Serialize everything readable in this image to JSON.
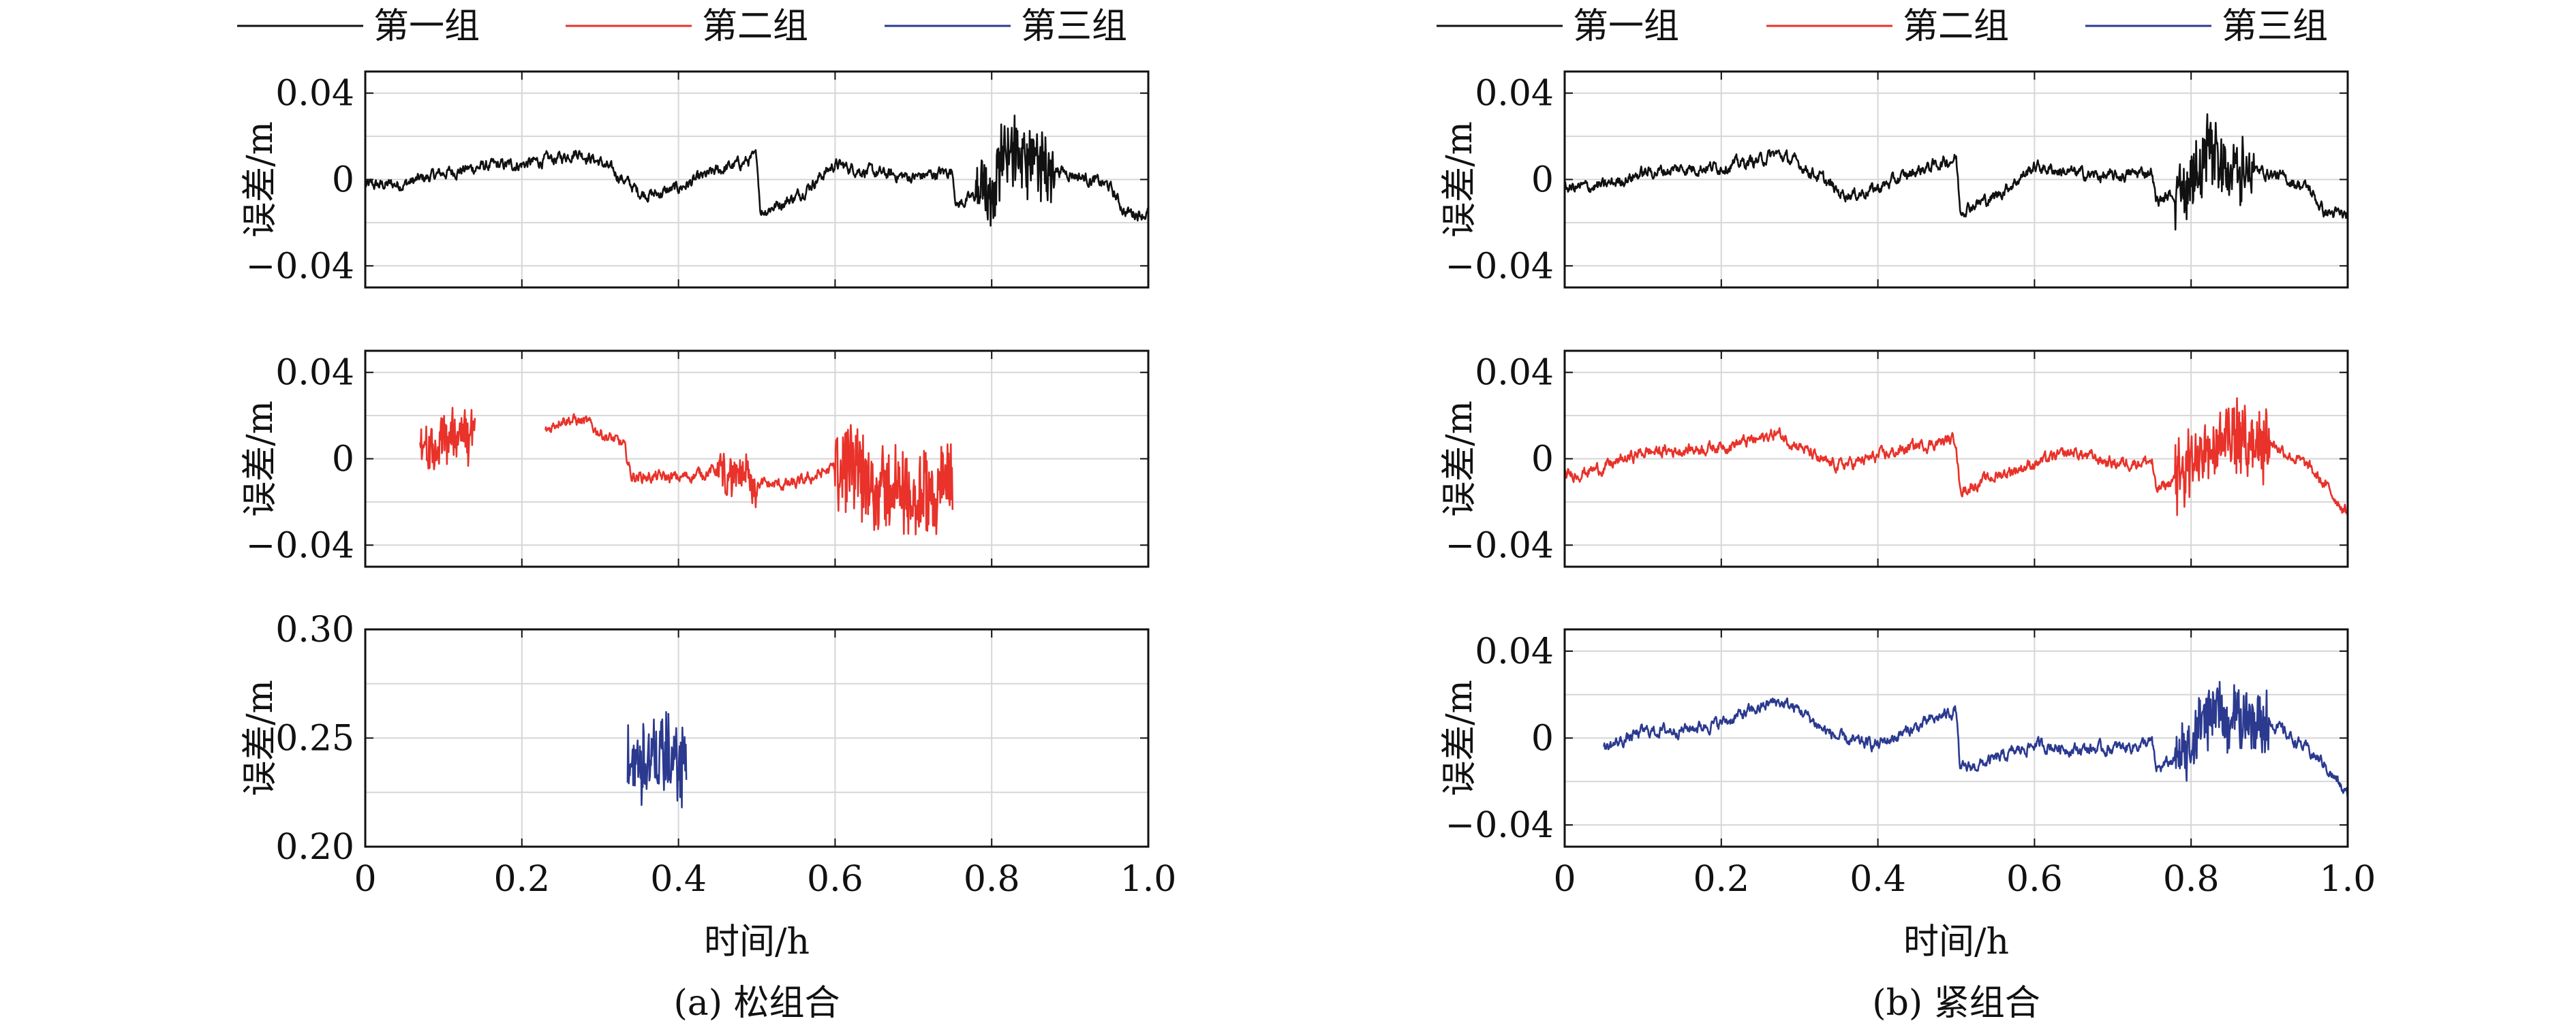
{
  "legend": [
    {
      "label": "第一组",
      "color": "#111111"
    },
    {
      "label": "第二组",
      "color": "#e8322a"
    },
    {
      "label": "第三组",
      "color": "#2b3a8f"
    }
  ],
  "chart_data": [
    {
      "panel": "(a) 松组合",
      "caption": "(a) 松组合",
      "xlabel": "时间/h",
      "xlim": [
        0,
        1.0
      ],
      "xticks": [
        "0",
        "0.2",
        "0.4",
        "0.6",
        "0.8",
        "1.0"
      ],
      "subplots": [
        {
          "type": "line",
          "ylabel": "误差/m",
          "ylim": [
            -0.05,
            0.05
          ],
          "yticks": [
            {
              "v": 0.04,
              "label": "0.04"
            },
            {
              "v": 0,
              "label": "0"
            },
            {
              "v": -0.04,
              "label": "−0.04"
            }
          ],
          "series": [
            {
              "name": "第一组",
              "color": "#111111",
              "x": [
                0,
                0.05,
                0.1,
                0.15,
                0.2,
                0.25,
                0.27,
                0.3,
                0.33,
                0.35,
                0.37,
                0.4,
                0.45,
                0.5,
                0.505,
                0.55,
                0.6,
                0.65,
                0.7,
                0.75,
                0.755,
                0.8,
                0.82,
                0.85,
                0.9,
                0.95,
                0.97,
                1.0
              ],
              "y": [
                -0.003,
                -0.002,
                0.003,
                0.006,
                0.007,
                0.01,
                0.013,
                0.008,
                0.0,
                -0.006,
                -0.007,
                -0.004,
                0.004,
                0.01,
                -0.015,
                -0.008,
                0.007,
                0.003,
                0.001,
                0.004,
                -0.012,
                -0.004,
                0.017,
                0.007,
                0.003,
                -0.003,
                -0.015,
                -0.016
              ],
              "noise": 0.004,
              "spikes": [
                [
                  0.78,
                  0.88,
                  0.018
                ]
              ]
            }
          ]
        },
        {
          "type": "line",
          "ylabel": "误差/m",
          "ylim": [
            -0.05,
            0.05
          ],
          "yticks": [
            {
              "v": 0.04,
              "label": "0.04"
            },
            {
              "v": 0,
              "label": "0"
            },
            {
              "v": -0.04,
              "label": "−0.04"
            }
          ],
          "series": [
            {
              "name": "第二组",
              "color": "#e8322a",
              "x": [
                0.07,
                0.1,
                0.14
              ],
              "y": [
                0.001,
                0.008,
                0.013
              ],
              "noise": 0.006,
              "spikes": [
                [
                  0.07,
                  0.14,
                  0.012
                ]
              ]
            },
            {
              "name": "第二组",
              "color": "#e8322a",
              "x": [
                0.23,
                0.25,
                0.28,
                0.31,
                0.33,
                0.34,
                0.4,
                0.45,
                0.5,
                0.55,
                0.6,
                0.65,
                0.7,
                0.75
              ],
              "y": [
                0.012,
                0.019,
                0.017,
                0.01,
                0.006,
                -0.008,
                -0.009,
                -0.005,
                -0.012,
                -0.012,
                -0.004,
                -0.012,
                -0.018,
                -0.01
              ],
              "noise": 0.004,
              "spikes": [
                [
                  0.6,
                  0.76,
                  0.022
                ],
                [
                  0.45,
                  0.5,
                  0.01
                ]
              ]
            }
          ]
        },
        {
          "type": "line",
          "ylabel": "误差/m",
          "ylim": [
            0.2,
            0.3
          ],
          "yticks": [
            {
              "v": 0.3,
              "label": "0.30"
            },
            {
              "v": 0.25,
              "label": "0.25"
            },
            {
              "v": 0.2,
              "label": "0.20"
            }
          ],
          "series": [
            {
              "name": "第三组",
              "color": "#2b3a8f",
              "x": [
                0.335,
                0.37,
                0.41
              ],
              "y": [
                0.238,
                0.24,
                0.24
              ],
              "noise": 0.004,
              "spikes": [
                [
                  0.335,
                  0.41,
                  0.022
                ]
              ]
            }
          ]
        }
      ]
    },
    {
      "panel": "(b) 紧组合",
      "caption": "(b) 紧组合",
      "xlabel": "时间/h",
      "xlim": [
        0,
        1.0
      ],
      "xticks": [
        "0",
        "0.2",
        "0.4",
        "0.6",
        "0.8",
        "1.0"
      ],
      "subplots": [
        {
          "type": "line",
          "ylabel": "误差/m",
          "ylim": [
            -0.05,
            0.05
          ],
          "yticks": [
            {
              "v": 0.04,
              "label": "0.04"
            },
            {
              "v": 0,
              "label": "0"
            },
            {
              "v": -0.04,
              "label": "−0.04"
            }
          ],
          "series": [
            {
              "name": "第一组",
              "color": "#111111",
              "x": [
                0,
                0.05,
                0.1,
                0.15,
                0.2,
                0.25,
                0.27,
                0.3,
                0.33,
                0.35,
                0.37,
                0.4,
                0.45,
                0.5,
                0.505,
                0.55,
                0.6,
                0.65,
                0.7,
                0.75,
                0.755,
                0.8,
                0.82,
                0.85,
                0.9,
                0.95,
                0.97,
                1.0
              ],
              "y": [
                -0.004,
                -0.003,
                0.003,
                0.005,
                0.006,
                0.009,
                0.012,
                0.007,
                0.0,
                -0.006,
                -0.007,
                -0.004,
                0.004,
                0.01,
                -0.014,
                -0.008,
                0.006,
                0.003,
                0.001,
                0.004,
                -0.01,
                -0.004,
                0.015,
                0.006,
                0.003,
                -0.004,
                -0.015,
                -0.017
              ],
              "noise": 0.004,
              "spikes": [
                [
                  0.78,
                  0.88,
                  0.017
                ]
              ]
            }
          ]
        },
        {
          "type": "line",
          "ylabel": "误差/m",
          "ylim": [
            -0.05,
            0.05
          ],
          "yticks": [
            {
              "v": 0.04,
              "label": "0.04"
            },
            {
              "v": 0,
              "label": "0"
            },
            {
              "v": -0.04,
              "label": "−0.04"
            }
          ],
          "series": [
            {
              "name": "第二组",
              "color": "#e8322a",
              "x": [
                0,
                0.05,
                0.1,
                0.15,
                0.2,
                0.25,
                0.27,
                0.3,
                0.33,
                0.35,
                0.37,
                0.4,
                0.45,
                0.5,
                0.505,
                0.55,
                0.6,
                0.65,
                0.7,
                0.75,
                0.755,
                0.8,
                0.82,
                0.85,
                0.9,
                0.95,
                0.97,
                1.0
              ],
              "y": [
                -0.008,
                -0.004,
                0.003,
                0.004,
                0.006,
                0.009,
                0.012,
                0.006,
                -0.002,
                -0.003,
                -0.002,
                0.001,
                0.006,
                0.009,
                -0.015,
                -0.008,
                -0.002,
                0.003,
                -0.002,
                -0.001,
                -0.015,
                -0.005,
                0.01,
                0.01,
                0.008,
                -0.004,
                -0.012,
                -0.025
              ],
              "noise": 0.004,
              "spikes": [
                [
                  0.78,
                  0.9,
                  0.018
                ]
              ]
            }
          ]
        },
        {
          "type": "line",
          "ylabel": "误差/m",
          "ylim": [
            -0.05,
            0.05
          ],
          "yticks": [
            {
              "v": 0.04,
              "label": "0.04"
            },
            {
              "v": 0,
              "label": "0"
            },
            {
              "v": -0.04,
              "label": "−0.04"
            }
          ],
          "series": [
            {
              "name": "第三组",
              "color": "#2b3a8f",
              "x": [
                0.05,
                0.1,
                0.15,
                0.2,
                0.25,
                0.27,
                0.3,
                0.33,
                0.35,
                0.37,
                0.4,
                0.45,
                0.5,
                0.505,
                0.55,
                0.6,
                0.65,
                0.7,
                0.75,
                0.755,
                0.8,
                0.82,
                0.85,
                0.9,
                0.95,
                0.97,
                1.0
              ],
              "y": [
                -0.005,
                0.003,
                0.004,
                0.007,
                0.014,
                0.017,
                0.013,
                0.004,
                0.0,
                -0.002,
                -0.003,
                0.005,
                0.013,
                -0.015,
                -0.01,
                -0.003,
                -0.005,
                -0.005,
                -0.002,
                -0.015,
                -0.005,
                0.012,
                0.01,
                0.008,
                -0.006,
                -0.012,
                -0.027
              ],
              "noise": 0.004,
              "spikes": [
                [
                  0.78,
                  0.9,
                  0.016
                ]
              ]
            }
          ]
        }
      ]
    }
  ]
}
